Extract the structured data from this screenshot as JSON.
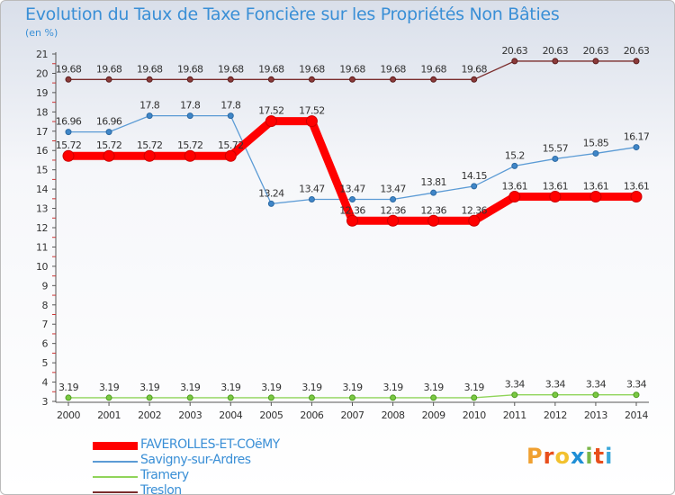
{
  "header": {
    "title": "Evolution du Taux de Taxe Foncière sur les Propriétés Non Bâties",
    "subtitle": "(en %)"
  },
  "logo": {
    "text": "Proxiti",
    "colors": [
      "#f0a030",
      "#e84e1b",
      "#f2c12e",
      "#1f8fd6",
      "#7ab648",
      "#e84e1b",
      "#3aa7d9"
    ]
  },
  "chart_data": {
    "type": "line",
    "title": "Evolution du Taux de Taxe Foncière sur les Propriétés Non Bâties",
    "ylabel": "(en %)",
    "xlabel": "",
    "x": [
      "2000",
      "2001",
      "2002",
      "2003",
      "2004",
      "2005",
      "2006",
      "2007",
      "2008",
      "2009",
      "2010",
      "2011",
      "2012",
      "2013",
      "2014"
    ],
    "yticks": [
      3,
      4,
      5,
      6,
      7,
      8,
      9,
      10,
      11,
      12,
      13,
      14,
      15,
      16,
      17,
      18,
      19,
      20,
      21
    ],
    "ylim": [
      3,
      21
    ],
    "grid": false,
    "legend_position": "bottom-left",
    "series": [
      {
        "name": "FAVEROLLES-ET-COëMY",
        "color": "#ff0000",
        "values": [
          15.72,
          15.72,
          15.72,
          15.72,
          15.72,
          17.52,
          17.52,
          12.36,
          12.36,
          12.36,
          12.36,
          13.61,
          13.61,
          13.61,
          13.61
        ],
        "labels": [
          "15.72",
          "15.72",
          "15.72",
          "15.72",
          "15.72",
          "17.52",
          "17.52",
          "12.36",
          "12.36",
          "12.36",
          "12.36",
          "13.61",
          "13.61",
          "13.61",
          "13.61"
        ]
      },
      {
        "name": "Savigny-sur-Ardres",
        "color": "#5b9bd5",
        "values": [
          16.96,
          16.96,
          17.8,
          17.8,
          17.8,
          13.24,
          13.47,
          13.47,
          13.47,
          13.81,
          14.15,
          15.2,
          15.57,
          15.85,
          16.17
        ],
        "labels": [
          "16.96",
          "16.96",
          "17.8",
          "17.8",
          "17.8",
          "13.24",
          "13.47",
          "13.47",
          "13.47",
          "13.81",
          "14.15",
          "15.2",
          "15.57",
          "15.85",
          "16.17"
        ]
      },
      {
        "name": "Tramery",
        "color": "#8fd45a",
        "values": [
          3.19,
          3.19,
          3.19,
          3.19,
          3.19,
          3.19,
          3.19,
          3.19,
          3.19,
          3.19,
          3.19,
          3.34,
          3.34,
          3.34,
          3.34
        ],
        "labels": [
          "3.19",
          "3.19",
          "3.19",
          "3.19",
          "3.19",
          "3.19",
          "3.19",
          "3.19",
          "3.19",
          "3.19",
          "3.19",
          "3.34",
          "3.34",
          "3.34",
          "3.34"
        ]
      },
      {
        "name": "Treslon",
        "color": "#7b2d2d",
        "values": [
          19.68,
          19.68,
          19.68,
          19.68,
          19.68,
          19.68,
          19.68,
          19.68,
          19.68,
          19.68,
          19.68,
          20.63,
          20.63,
          20.63,
          20.63
        ],
        "labels": [
          "19.68",
          "19.68",
          "19.68",
          "19.68",
          "19.68",
          "19.68",
          "19.68",
          "19.68",
          "19.68",
          "19.68",
          "19.68",
          "20.63",
          "20.63",
          "20.63",
          "20.63"
        ]
      }
    ]
  }
}
